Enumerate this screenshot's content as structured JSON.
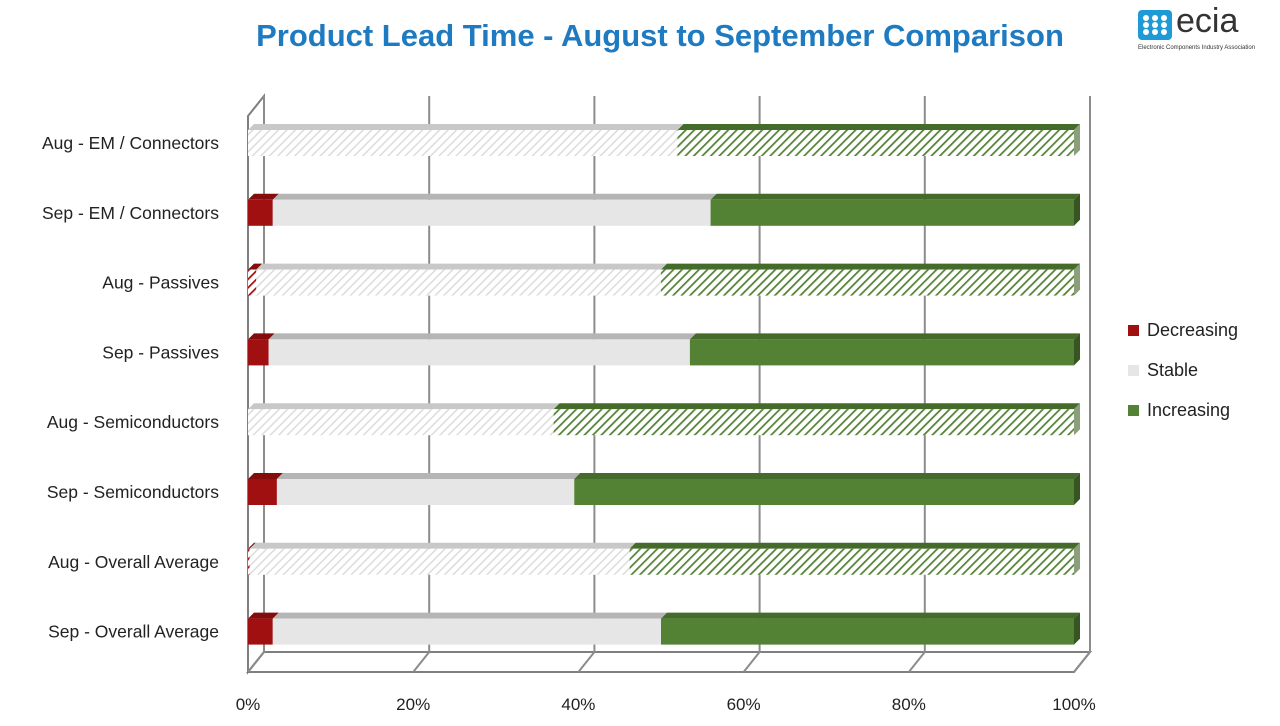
{
  "header": {
    "title": "Product Lead Time - August to September Comparison",
    "logo_text": "ecia",
    "logo_sub": "Electronic Components Industry Association"
  },
  "colors": {
    "decreasing": "#a01010",
    "stable": "#e6e6e6",
    "increasing": "#548235",
    "title": "#1f7bc1"
  },
  "legend": [
    {
      "name": "Decreasing",
      "color": "#a01010"
    },
    {
      "name": "Stable",
      "color": "#e6e6e6"
    },
    {
      "name": "Increasing",
      "color": "#548235"
    }
  ],
  "chart_data": {
    "type": "bar",
    "orientation": "horizontal",
    "stacked": "100%",
    "categories": [
      "Aug - EM / Connectors",
      "Sep - EM / Connectors",
      "Aug - Passives",
      "Sep - Passives",
      "Aug - Semiconductors",
      "Sep - Semiconductors",
      "Aug - Overall Average",
      "Sep - Overall Average"
    ],
    "series": [
      {
        "name": "Decreasing",
        "values": [
          0,
          3,
          1,
          2.5,
          0,
          3.5,
          0.2,
          3
        ]
      },
      {
        "name": "Stable",
        "values": [
          52,
          53,
          49,
          51,
          37,
          36,
          46,
          47
        ]
      },
      {
        "name": "Increasing",
        "values": [
          48,
          44,
          50,
          46.5,
          63,
          60.5,
          53.8,
          50
        ]
      }
    ],
    "hatched_categories": [
      "Aug - EM / Connectors",
      "Aug - Passives",
      "Aug - Semiconductors",
      "Aug - Overall Average"
    ],
    "x_ticks": [
      "0%",
      "20%",
      "40%",
      "60%",
      "80%",
      "100%"
    ],
    "xlim": [
      0,
      100
    ],
    "grid": true,
    "legend_position": "right"
  }
}
